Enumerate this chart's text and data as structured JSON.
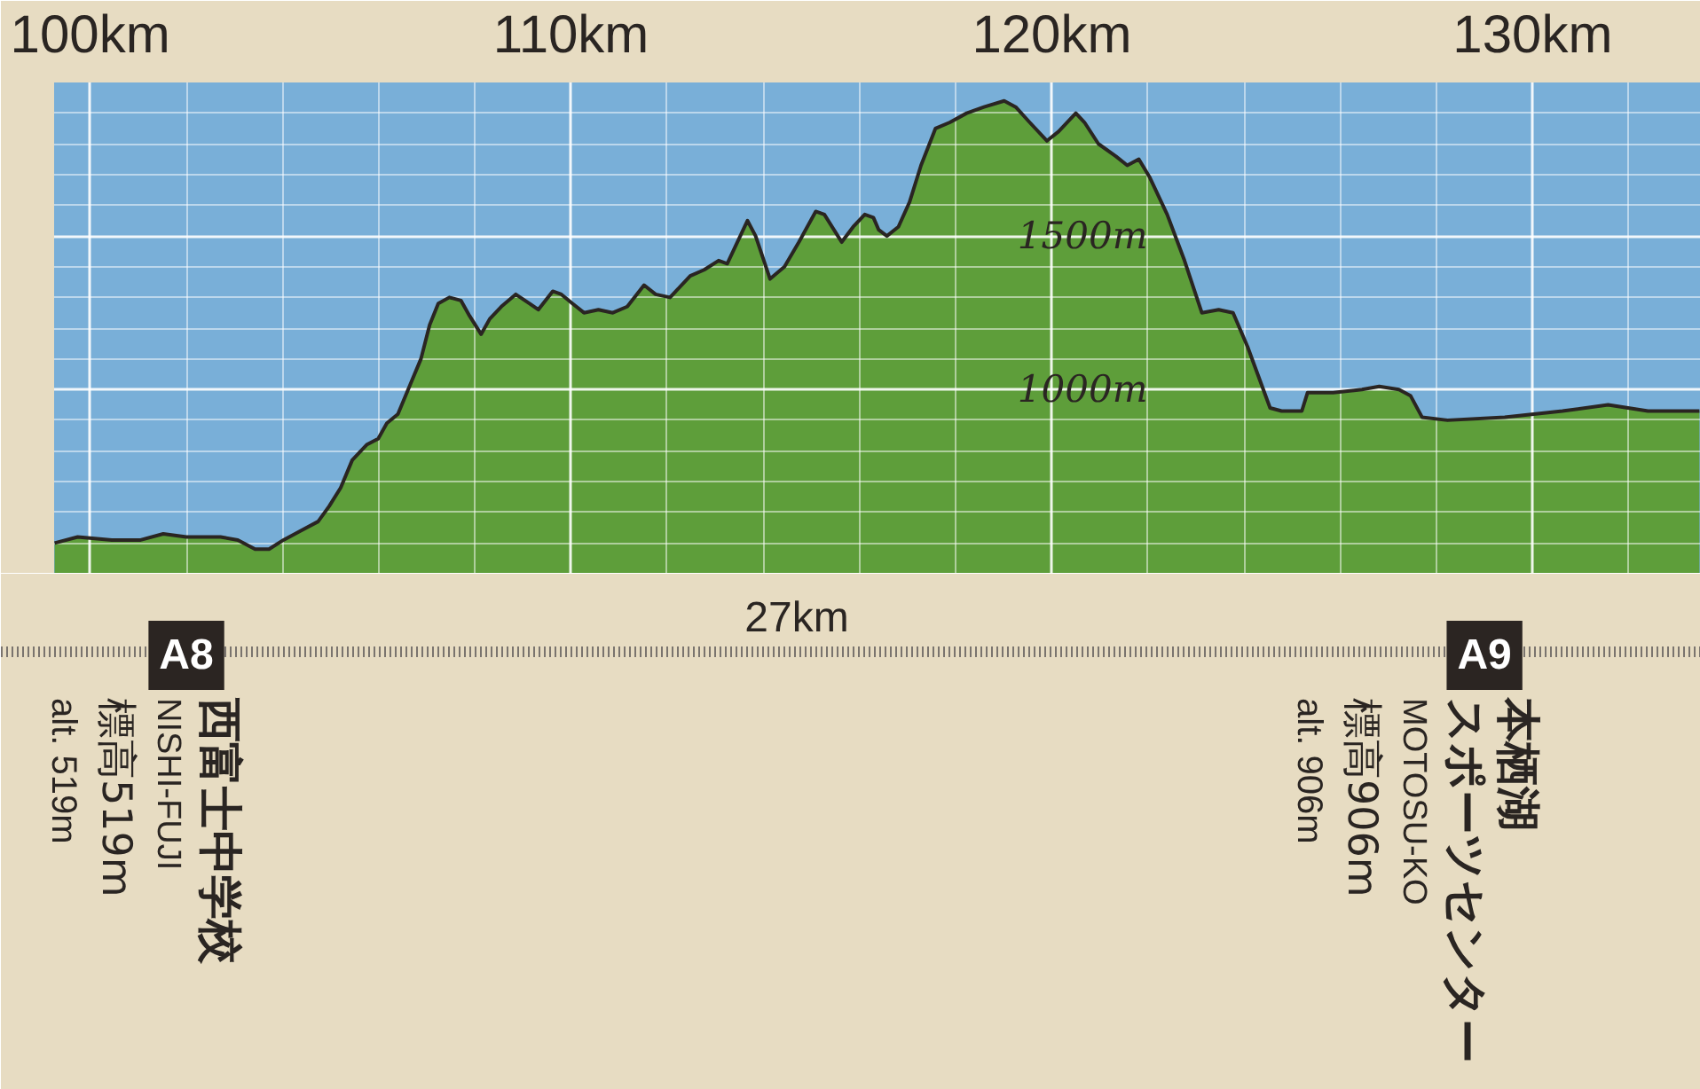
{
  "chart_data": {
    "type": "area",
    "color": "#5e9e3a",
    "grid": true,
    "xlim": [
      99.25,
      133.5
    ],
    "ylim": [
      400,
      2000
    ],
    "xticks": [
      {
        "value": 100,
        "label": "100km"
      },
      {
        "value": 102,
        "label": null
      },
      {
        "value": 104,
        "label": null
      },
      {
        "value": 106,
        "label": null
      },
      {
        "value": 108,
        "label": null
      },
      {
        "value": 110,
        "label": "110km"
      },
      {
        "value": 112,
        "label": null
      },
      {
        "value": 114,
        "label": null
      },
      {
        "value": 116,
        "label": null
      },
      {
        "value": 118,
        "label": null
      },
      {
        "value": 120,
        "label": "120km"
      },
      {
        "value": 122,
        "label": null
      },
      {
        "value": 124,
        "label": null
      },
      {
        "value": 126,
        "label": null
      },
      {
        "value": 128,
        "label": null
      },
      {
        "value": 130,
        "label": "130km"
      },
      {
        "value": 132,
        "label": null
      }
    ],
    "yticks": [
      {
        "value": 500,
        "label": null
      },
      {
        "value": 600,
        "label": null
      },
      {
        "value": 700,
        "label": null
      },
      {
        "value": 800,
        "label": null
      },
      {
        "value": 900,
        "label": null
      },
      {
        "value": 1000,
        "label": "1000m"
      },
      {
        "value": 1100,
        "label": null
      },
      {
        "value": 1200,
        "label": null
      },
      {
        "value": 1300,
        "label": null
      },
      {
        "value": 1400,
        "label": null
      },
      {
        "value": 1500,
        "label": "1500m"
      },
      {
        "value": 1600,
        "label": null
      },
      {
        "value": 1700,
        "label": null
      },
      {
        "value": 1800,
        "label": null
      },
      {
        "value": 1900,
        "label": null
      }
    ],
    "x": [
      99.26,
      99.74,
      100.45,
      101.05,
      101.52,
      102.0,
      102.71,
      103.07,
      103.43,
      103.72,
      104.02,
      104.38,
      104.74,
      104.97,
      105.21,
      105.45,
      105.75,
      105.99,
      106.17,
      106.4,
      106.64,
      106.88,
      107.06,
      107.24,
      107.47,
      107.71,
      107.89,
      108.13,
      108.31,
      108.55,
      108.85,
      109.14,
      109.32,
      109.62,
      109.8,
      110.03,
      110.27,
      110.57,
      110.87,
      111.17,
      111.52,
      111.76,
      112.06,
      112.48,
      112.77,
      113.07,
      113.25,
      113.49,
      113.67,
      113.84,
      114.14,
      114.44,
      114.74,
      115.09,
      115.27,
      115.51,
      115.63,
      115.87,
      116.11,
      116.29,
      116.4,
      116.57,
      116.81,
      117.04,
      117.28,
      117.58,
      117.88,
      118.23,
      118.59,
      119.01,
      119.25,
      119.54,
      119.9,
      120.14,
      120.5,
      120.68,
      120.97,
      121.33,
      121.57,
      121.81,
      122.04,
      122.4,
      122.76,
      123.12,
      123.47,
      123.77,
      124.07,
      124.54,
      124.78,
      125.2,
      125.32,
      125.85,
      126.45,
      126.81,
      127.22,
      127.46,
      127.7,
      128.23,
      129.42,
      130.62,
      131.57,
      132.4,
      133.47
    ],
    "values": [
      500,
      520,
      510,
      510,
      530,
      520,
      520,
      510,
      480,
      480,
      510,
      540,
      570,
      620,
      680,
      770,
      820,
      840,
      890,
      920,
      1010,
      1100,
      1210,
      1280,
      1300,
      1290,
      1240,
      1180,
      1230,
      1270,
      1310,
      1280,
      1260,
      1320,
      1310,
      1280,
      1250,
      1260,
      1250,
      1270,
      1340,
      1310,
      1300,
      1370,
      1390,
      1420,
      1410,
      1490,
      1550,
      1500,
      1360,
      1400,
      1480,
      1580,
      1570,
      1510,
      1480,
      1530,
      1570,
      1560,
      1520,
      1500,
      1530,
      1610,
      1730,
      1850,
      1870,
      1900,
      1920,
      1940,
      1920,
      1870,
      1810,
      1840,
      1900,
      1870,
      1800,
      1760,
      1730,
      1750,
      1690,
      1570,
      1420,
      1250,
      1260,
      1250,
      1140,
      940,
      930,
      930,
      990,
      990,
      1000,
      1010,
      1000,
      980,
      910,
      900,
      910,
      930,
      950,
      930,
      930
    ],
    "annotations": [
      "A8",
      "西富士中学校",
      "NISHI-FUJI",
      "標高519m",
      "alt. 519m",
      "27km",
      "A9",
      "本栖湖スポーツセンター",
      "MOTOSU-KO",
      "標高906m",
      "alt. 906m"
    ]
  }
}
